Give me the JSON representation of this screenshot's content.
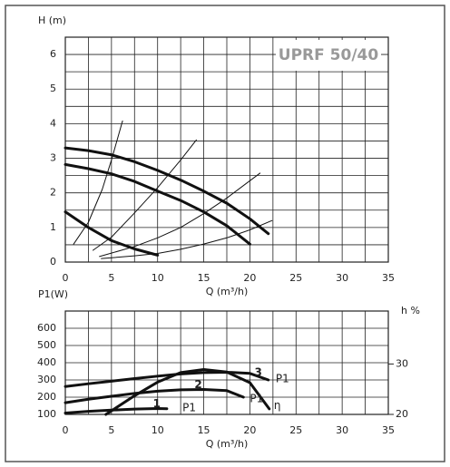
{
  "chart_data": [
    {
      "type": "line",
      "ylabel": "H (m)",
      "xlabel": "Q (m³/h)",
      "label": "UPRF 50/40",
      "xlim": [
        0,
        35
      ],
      "xticks": [
        0,
        5,
        10,
        15,
        20,
        25,
        30,
        35
      ],
      "ylim": [
        0,
        6.5
      ],
      "yticks": [
        0,
        1,
        2,
        3,
        4,
        5,
        6
      ],
      "xgrid": [
        0,
        2.5,
        5,
        7.5,
        10,
        12.5,
        15,
        17.5,
        20,
        22.5,
        25,
        27.5,
        30,
        32.5,
        35
      ],
      "ygrid": [
        0,
        0.5,
        1,
        1.5,
        2,
        2.5,
        3,
        3.5,
        4,
        4.5,
        5,
        5.5,
        6,
        6.5
      ],
      "series": [
        {
          "color": "#111",
          "line_width": 3,
          "x": [
            0,
            2.5,
            5,
            7.5,
            10,
            12.5,
            15,
            17.5,
            20,
            22
          ],
          "values": [
            3.3,
            3.22,
            3.1,
            2.9,
            2.65,
            2.37,
            2.05,
            1.7,
            1.25,
            0.82
          ]
        },
        {
          "color": "#111",
          "line_width": 3,
          "x": [
            0,
            2.5,
            5,
            7.5,
            10,
            12.5,
            15,
            17.5,
            20
          ],
          "values": [
            2.82,
            2.7,
            2.55,
            2.33,
            2.05,
            1.78,
            1.45,
            1.05,
            0.52
          ]
        },
        {
          "color": "#111",
          "line_width": 3,
          "x": [
            0,
            2.5,
            5,
            7.5,
            10
          ],
          "values": [
            1.45,
            1.0,
            0.62,
            0.38,
            0.2
          ]
        },
        {
          "color": "#111",
          "line_width": 1,
          "x": [
            0.9,
            2.5,
            4,
            5,
            6.2
          ],
          "values": [
            0.52,
            1.15,
            2.1,
            2.95,
            4.08
          ]
        },
        {
          "color": "#111",
          "line_width": 1,
          "x": [
            3,
            5,
            7.5,
            10,
            12.5,
            14.2
          ],
          "values": [
            0.34,
            0.72,
            1.42,
            2.15,
            2.95,
            3.53
          ]
        },
        {
          "color": "#111",
          "line_width": 1,
          "x": [
            3.7,
            7.5,
            10,
            12.5,
            15,
            17.5,
            21.1
          ],
          "values": [
            0.16,
            0.45,
            0.7,
            1.0,
            1.4,
            1.85,
            2.57
          ]
        },
        {
          "color": "#111",
          "line_width": 1,
          "x": [
            3.9,
            7.5,
            10,
            12.5,
            15,
            17.5,
            20,
            22.4
          ],
          "values": [
            0.1,
            0.18,
            0.25,
            0.37,
            0.52,
            0.7,
            0.93,
            1.2
          ]
        }
      ]
    },
    {
      "type": "line",
      "ylabel": "P1(W)",
      "y2label": "h %",
      "xlabel": "Q (m³/h)",
      "xlim": [
        0,
        35
      ],
      "xticks": [
        0,
        5,
        10,
        15,
        20,
        25,
        30,
        35
      ],
      "ylim": [
        100,
        700
      ],
      "yticks": [
        100,
        200,
        300,
        400,
        500,
        600
      ],
      "y2lim": [
        20,
        40.5
      ],
      "y2ticks": [
        20,
        30
      ],
      "xgrid": [
        0,
        2.5,
        5,
        7.5,
        10,
        12.5,
        15,
        17.5,
        20,
        22.5,
        25,
        27.5,
        30,
        32.5,
        35
      ],
      "ygrid": [
        100,
        200,
        300,
        400,
        500,
        600,
        700
      ],
      "series": [
        {
          "color": "#111",
          "line_width": 3,
          "x": [
            0,
            2.5,
            5,
            7.5,
            10,
            12.5,
            15,
            17.5,
            20,
            22
          ],
          "values": [
            262,
            278,
            293,
            308,
            322,
            335,
            343,
            345,
            338,
            300
          ]
        },
        {
          "color": "#111",
          "line_width": 3,
          "x": [
            0,
            2.5,
            5,
            7.5,
            10,
            12.5,
            15,
            17.5,
            19.3
          ],
          "values": [
            168,
            188,
            205,
            222,
            235,
            243,
            245,
            238,
            200
          ]
        },
        {
          "color": "#111",
          "line_width": 3,
          "x": [
            0,
            2.5,
            5,
            7.5,
            10,
            11
          ],
          "values": [
            108,
            118,
            125,
            131,
            134,
            133
          ]
        },
        {
          "color": "#111",
          "line_width": 3,
          "axis": "y2",
          "x": [
            4.4,
            7.5,
            10,
            12.5,
            15,
            17.5,
            20,
            22.1
          ],
          "values": [
            20,
            23.7,
            26.4,
            28.3,
            28.9,
            28.4,
            26.3,
            21.1
          ]
        }
      ],
      "annotations": [
        {
          "text": "1",
          "weight": "bold",
          "x": 9.5,
          "y": 160
        },
        {
          "text": "P1",
          "weight": "normal",
          "x": 12.7,
          "y": 138
        },
        {
          "text": "2",
          "weight": "bold",
          "x": 14,
          "y": 272
        },
        {
          "text": "P1",
          "weight": "normal",
          "x": 20,
          "y": 190
        },
        {
          "text": "3",
          "weight": "bold",
          "x": 20.5,
          "y": 342
        },
        {
          "text": "P1",
          "weight": "normal",
          "x": 22.8,
          "y": 305
        },
        {
          "text": "η",
          "weight": "normal",
          "x": 22.6,
          "y": 150
        }
      ]
    }
  ]
}
